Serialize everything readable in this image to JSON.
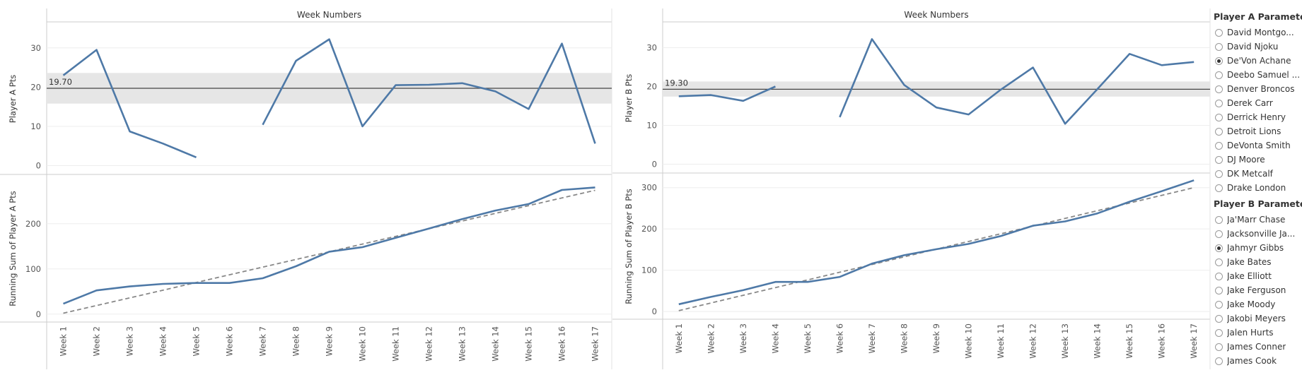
{
  "chart_data": [
    {
      "type": "line",
      "header": "Week Numbers",
      "categories": [
        "Week 1",
        "Week 2",
        "Week 3",
        "Week 4",
        "Week 5",
        "Week 6",
        "Week 7",
        "Week 8",
        "Week 9",
        "Week 10",
        "Week 11",
        "Week 12",
        "Week 13",
        "Week 14",
        "Week 15",
        "Week 16",
        "Week 17"
      ],
      "top": {
        "ylabel": "Player A Pts",
        "ylim": [
          -1,
          35
        ],
        "yticks": [
          0,
          10,
          20,
          30
        ],
        "values": [
          23,
          29.5,
          8.7,
          5.6,
          2.1,
          null,
          10.4,
          26.7,
          32.2,
          10,
          20.5,
          20.6,
          21,
          18.9,
          14.4,
          31.1,
          5.6
        ],
        "reference_line": 19.7,
        "reference_label": "19.70",
        "band": [
          15.8,
          23.6
        ]
      },
      "bottom": {
        "ylabel": "Running Sum of Player A Pts",
        "ylim": [
          -5,
          295
        ],
        "yticks": [
          0,
          100,
          200
        ],
        "values": [
          23,
          52.5,
          61.2,
          66.8,
          68.9,
          68.9,
          79.3,
          106,
          138.2,
          148.2,
          168.7,
          189.3,
          210.3,
          229.2,
          243.6,
          274.7,
          280.3
        ],
        "trend": [
          2,
          274
        ]
      }
    },
    {
      "type": "line",
      "header": "Week Numbers",
      "categories": [
        "Week 1",
        "Week 2",
        "Week 3",
        "Week 4",
        "Week 5",
        "Week 6",
        "Week 7",
        "Week 8",
        "Week 9",
        "Week 10",
        "Week 11",
        "Week 12",
        "Week 13",
        "Week 14",
        "Week 15",
        "Week 16",
        "Week 17"
      ],
      "top": {
        "ylabel": "Player B Pts",
        "ylim": [
          -1,
          35
        ],
        "yticks": [
          0,
          10,
          20,
          30
        ],
        "values": [
          17.5,
          17.8,
          16.3,
          20,
          null,
          12.1,
          32.2,
          20.4,
          14.6,
          12.8,
          19.2,
          24.9,
          10.4,
          19.3,
          28.4,
          25.5,
          26.3
        ],
        "reference_line": 19.3,
        "reference_label": "19.30",
        "band": [
          17.4,
          21.3
        ]
      },
      "bottom": {
        "ylabel": "Running Sum of Player B Pts",
        "ylim": [
          -5,
          320
        ],
        "yticks": [
          0,
          100,
          200,
          300
        ],
        "values": [
          17.5,
          35.3,
          51.6,
          71.6,
          71.6,
          83.7,
          115.9,
          136.3,
          150.9,
          163.7,
          182.9,
          207.8,
          218.2,
          237.5,
          265.9,
          291.4,
          317.7
        ],
        "trend": [
          2,
          300
        ]
      }
    }
  ],
  "parameters": {
    "player_a": {
      "title": "Player A Parameter",
      "options": [
        {
          "label": "David Montgo...",
          "selected": false
        },
        {
          "label": "David Njoku",
          "selected": false
        },
        {
          "label": "De'Von Achane",
          "selected": true
        },
        {
          "label": "Deebo Samuel ...",
          "selected": false
        },
        {
          "label": "Denver Broncos",
          "selected": false
        },
        {
          "label": "Derek Carr",
          "selected": false
        },
        {
          "label": "Derrick Henry",
          "selected": false
        },
        {
          "label": "Detroit Lions",
          "selected": false
        },
        {
          "label": "DeVonta Smith",
          "selected": false
        },
        {
          "label": "DJ Moore",
          "selected": false
        },
        {
          "label": "DK Metcalf",
          "selected": false
        },
        {
          "label": "Drake London",
          "selected": false
        }
      ]
    },
    "player_b": {
      "title": "Player B Parameter",
      "options": [
        {
          "label": "Ja'Marr Chase",
          "selected": false
        },
        {
          "label": "Jacksonville Ja...",
          "selected": false
        },
        {
          "label": "Jahmyr Gibbs",
          "selected": true
        },
        {
          "label": "Jake Bates",
          "selected": false
        },
        {
          "label": "Jake Elliott",
          "selected": false
        },
        {
          "label": "Jake Ferguson",
          "selected": false
        },
        {
          "label": "Jake Moody",
          "selected": false
        },
        {
          "label": "Jakobi Meyers",
          "selected": false
        },
        {
          "label": "Jalen Hurts",
          "selected": false
        },
        {
          "label": "James Conner",
          "selected": false
        },
        {
          "label": "James Cook",
          "selected": false
        }
      ]
    }
  },
  "colors": {
    "line": "#4e79a7",
    "reference_line": "#444444",
    "band": "#e6e6e6",
    "trend": "#888888",
    "grid": "#eeeeee",
    "axis": "#cccccc"
  }
}
